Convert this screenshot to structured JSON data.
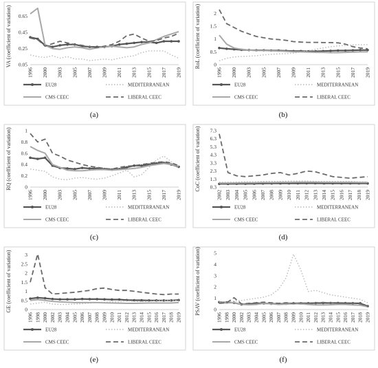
{
  "colors": {
    "eu28": "#555555",
    "mediterranean": "#b8b8b8",
    "cms": "#a8a8a8",
    "liberal": "#6a6a6a"
  },
  "legend": [
    "EU28",
    "MEDITERRANEAN",
    "CMS CEEC",
    "LIBERAL CEEC"
  ],
  "chart_data": [
    {
      "type": "line",
      "panel_label": "(a)",
      "ylabel": "VA (coefficient of variation)",
      "ylim": [
        0.05,
        0.75
      ],
      "yticks": [
        0.05,
        0.25,
        0.45,
        0.65
      ],
      "x": [
        "1996",
        "1998",
        "2000",
        "2002",
        "2003",
        "2004",
        "2005",
        "2006",
        "2007",
        "2008",
        "2009",
        "2010",
        "2011",
        "2012",
        "2013",
        "2014",
        "2015",
        "2016",
        "2017",
        "2018",
        "2019"
      ],
      "xticks": [
        "1996",
        "2000",
        "2003",
        "2005",
        "2007",
        "2009",
        "2011",
        "2013",
        "2015",
        "2017",
        "2019"
      ],
      "series": [
        {
          "name": "EU28",
          "style": "eu28",
          "values": [
            0.39,
            0.37,
            0.29,
            0.27,
            0.29,
            0.3,
            0.3,
            0.28,
            0.27,
            0.27,
            0.27,
            0.28,
            0.3,
            0.31,
            0.32,
            0.33,
            0.33,
            0.32,
            0.34,
            0.34,
            0.34
          ]
        },
        {
          "name": "MEDITERRANEAN",
          "style": "mediterranean",
          "values": [
            0.17,
            0.15,
            0.14,
            0.16,
            0.13,
            0.15,
            0.12,
            0.12,
            0.1,
            0.11,
            0.12,
            0.11,
            0.13,
            0.15,
            0.16,
            0.2,
            0.22,
            0.22,
            0.22,
            0.17,
            0.13
          ]
        },
        {
          "name": "CMS CEEC",
          "style": "cms",
          "values": [
            0.68,
            0.75,
            0.29,
            0.25,
            0.24,
            0.26,
            0.27,
            0.26,
            0.24,
            0.26,
            0.27,
            0.28,
            0.27,
            0.26,
            0.27,
            0.3,
            0.32,
            0.36,
            0.4,
            0.43,
            0.46
          ]
        },
        {
          "name": "LIBERAL CEEC",
          "style": "liberal",
          "values": [
            0.38,
            0.36,
            0.28,
            0.31,
            0.34,
            0.32,
            0.3,
            0.29,
            0.27,
            0.26,
            0.28,
            0.3,
            0.34,
            0.41,
            0.43,
            0.38,
            0.34,
            0.35,
            0.38,
            0.4,
            0.44
          ]
        }
      ]
    },
    {
      "type": "line",
      "panel_label": "(b)",
      "ylabel": "RoL (coefficient of variation)",
      "ylim": [
        0,
        2.2
      ],
      "yticks": [
        0,
        0.5,
        1,
        1.5,
        2
      ],
      "x": [
        "1996",
        "1998",
        "2000",
        "2002",
        "2003",
        "2004",
        "2005",
        "2006",
        "2007",
        "2008",
        "2009",
        "2010",
        "2011",
        "2012",
        "2013",
        "2014",
        "2015",
        "2016",
        "2017",
        "2018",
        "2019"
      ],
      "xticks": [
        "1996",
        "2000",
        "2003",
        "2005",
        "2007",
        "2009",
        "2011",
        "2013",
        "2015",
        "2017",
        "2019"
      ],
      "series": [
        {
          "name": "EU28",
          "style": "eu28",
          "values": [
            0.65,
            0.62,
            0.6,
            0.58,
            0.57,
            0.56,
            0.56,
            0.55,
            0.55,
            0.54,
            0.53,
            0.53,
            0.52,
            0.52,
            0.53,
            0.54,
            0.55,
            0.55,
            0.56,
            0.57,
            0.57
          ]
        },
        {
          "name": "MEDITERRANEAN",
          "style": "mediterranean",
          "values": [
            0.15,
            0.25,
            0.3,
            0.32,
            0.33,
            0.35,
            0.38,
            0.4,
            0.42,
            0.43,
            0.45,
            0.5,
            0.55,
            0.6,
            0.65,
            0.7,
            0.73,
            0.75,
            0.77,
            0.78,
            0.78
          ]
        },
        {
          "name": "CMS CEEC",
          "style": "cms",
          "values": [
            1.15,
            0.8,
            0.65,
            0.6,
            0.57,
            0.55,
            0.55,
            0.54,
            0.53,
            0.52,
            0.5,
            0.5,
            0.49,
            0.48,
            0.48,
            0.47,
            0.47,
            0.48,
            0.49,
            0.5,
            0.5
          ]
        },
        {
          "name": "LIBERAL CEEC",
          "style": "liberal",
          "values": [
            2.15,
            1.6,
            1.45,
            1.3,
            1.2,
            1.1,
            1.05,
            1.0,
            0.98,
            0.95,
            0.9,
            0.88,
            0.87,
            0.87,
            0.86,
            0.86,
            0.85,
            0.8,
            0.7,
            0.65,
            0.62
          ]
        }
      ]
    },
    {
      "type": "line",
      "panel_label": "(c)",
      "ylabel": "RQ (coefficient of variation)",
      "ylim": [
        0,
        1
      ],
      "yticks": [
        0,
        0.2,
        0.4,
        0.6,
        0.8,
        1
      ],
      "x": [
        "1996",
        "1998",
        "2000",
        "2002",
        "2003",
        "2004",
        "2005",
        "2006",
        "2007",
        "2008",
        "2009",
        "2010",
        "2011",
        "2012",
        "2013",
        "2014",
        "2015",
        "2016",
        "2017",
        "2018",
        "2019"
      ],
      "xticks": [
        "1996",
        "2000",
        "2003",
        "2005",
        "2007",
        "2009",
        "2011",
        "2013",
        "2015",
        "2017",
        "2019"
      ],
      "series": [
        {
          "name": "EU28",
          "style": "eu28",
          "values": [
            0.52,
            0.5,
            0.52,
            0.38,
            0.34,
            0.33,
            0.32,
            0.34,
            0.33,
            0.33,
            0.32,
            0.31,
            0.32,
            0.35,
            0.38,
            0.38,
            0.4,
            0.42,
            0.43,
            0.4,
            0.36
          ]
        },
        {
          "name": "MEDITERRANEAN",
          "style": "mediterranean",
          "values": [
            0.32,
            0.3,
            0.28,
            0.18,
            0.14,
            0.13,
            0.16,
            0.17,
            0.15,
            0.14,
            0.16,
            0.2,
            0.25,
            0.3,
            0.18,
            0.22,
            0.35,
            0.48,
            0.55,
            0.45,
            0.33
          ]
        },
        {
          "name": "CMS CEEC",
          "style": "cms",
          "values": [
            0.72,
            0.65,
            0.6,
            0.4,
            0.35,
            0.3,
            0.29,
            0.29,
            0.3,
            0.31,
            0.31,
            0.3,
            0.31,
            0.32,
            0.33,
            0.35,
            0.38,
            0.4,
            0.42,
            0.4,
            0.37
          ]
        },
        {
          "name": "LIBERAL CEEC",
          "style": "liberal",
          "values": [
            0.95,
            0.8,
            0.85,
            0.6,
            0.55,
            0.48,
            0.44,
            0.4,
            0.37,
            0.35,
            0.33,
            0.32,
            0.35,
            0.37,
            0.38,
            0.4,
            0.42,
            0.44,
            0.45,
            0.43,
            0.38
          ]
        }
      ]
    },
    {
      "type": "line",
      "panel_label": "(d)",
      "ylabel": "CoC (coefficient of variation)",
      "ylim": [
        0.3,
        7.3
      ],
      "yticks": [
        0.3,
        1.3,
        2.3,
        3.3,
        4.3,
        5.3,
        6.3,
        7.3
      ],
      "x": [
        "2002",
        "2003",
        "2004",
        "2005",
        "2006",
        "2007",
        "2008",
        "2009",
        "2010",
        "2011",
        "2012",
        "2013",
        "2014",
        "2015",
        "2016",
        "2017",
        "2018",
        "2019"
      ],
      "xticks": [
        "2002",
        "2003",
        "2004",
        "2005",
        "2006",
        "2007",
        "2008",
        "2009",
        "2010",
        "2011",
        "2012",
        "2013",
        "2014",
        "2015",
        "2016",
        "2017",
        "2018",
        "2019"
      ],
      "series": [
        {
          "name": "EU28",
          "style": "eu28",
          "values": [
            0.7,
            0.7,
            0.72,
            0.72,
            0.73,
            0.74,
            0.75,
            0.75,
            0.76,
            0.76,
            0.77,
            0.77,
            0.76,
            0.76,
            0.76,
            0.76,
            0.76,
            0.75
          ]
        },
        {
          "name": "MEDITERRANEAN",
          "style": "mediterranean",
          "values": [
            0.9,
            0.9,
            0.92,
            0.95,
            0.95,
            1.0,
            1.0,
            1.0,
            1.05,
            1.05,
            1.05,
            1.0,
            1.0,
            1.0,
            1.0,
            1.0,
            0.95,
            0.95
          ]
        },
        {
          "name": "CMS CEEC",
          "style": "cms",
          "values": [
            0.8,
            0.8,
            0.82,
            0.85,
            0.85,
            0.88,
            0.88,
            0.9,
            0.9,
            0.92,
            0.92,
            0.92,
            0.9,
            0.9,
            0.9,
            0.9,
            0.88,
            0.88
          ]
        },
        {
          "name": "LIBERAL CEEC",
          "style": "liberal",
          "values": [
            6.9,
            2.1,
            1.7,
            1.6,
            1.7,
            1.8,
            2.0,
            2.1,
            1.8,
            2.0,
            2.3,
            2.2,
            1.9,
            1.6,
            1.5,
            1.4,
            1.5,
            1.6
          ]
        }
      ]
    },
    {
      "type": "line",
      "panel_label": "(e)",
      "ylabel": "GE (coefficient of variation)",
      "ylim": [
        0,
        3.1
      ],
      "yticks": [
        0,
        0.5,
        1,
        1.5,
        2,
        2.5,
        3
      ],
      "x": [
        "1996",
        "1998",
        "2000",
        "2002",
        "2003",
        "2004",
        "2005",
        "2006",
        "2007",
        "2008",
        "2009",
        "2010",
        "2011",
        "2012",
        "2013",
        "2014",
        "2015",
        "2016",
        "2017",
        "2018",
        "2019"
      ],
      "xticks": [
        "1996",
        "1998",
        "2000",
        "2002",
        "2003",
        "2004",
        "2005",
        "2006",
        "2007",
        "2008",
        "2009",
        "2010",
        "2011",
        "2012",
        "2013",
        "2014",
        "2015",
        "2016",
        "2017",
        "2018",
        "2019"
      ],
      "series": [
        {
          "name": "EU28",
          "style": "eu28",
          "values": [
            0.6,
            0.65,
            0.62,
            0.58,
            0.56,
            0.56,
            0.56,
            0.58,
            0.57,
            0.57,
            0.56,
            0.55,
            0.55,
            0.52,
            0.51,
            0.51,
            0.5,
            0.5,
            0.5,
            0.5,
            0.52
          ]
        },
        {
          "name": "MEDITERRANEAN",
          "style": "mediterranean",
          "values": [
            0.3,
            0.35,
            0.4,
            0.3,
            0.28,
            0.28,
            0.3,
            0.32,
            0.35,
            0.38,
            0.4,
            0.42,
            0.42,
            0.48,
            0.45,
            0.44,
            0.45,
            0.48,
            0.5,
            0.5,
            0.5
          ]
        },
        {
          "name": "CMS CEEC",
          "style": "cms",
          "values": [
            0.5,
            0.55,
            0.5,
            0.45,
            0.42,
            0.4,
            0.38,
            0.38,
            0.38,
            0.38,
            0.37,
            0.36,
            0.35,
            0.34,
            0.34,
            0.35,
            0.36,
            0.36,
            0.36,
            0.36,
            0.38
          ]
        },
        {
          "name": "LIBERAL CEEC",
          "style": "liberal",
          "values": [
            1.5,
            3.05,
            1.2,
            0.85,
            0.88,
            0.92,
            0.95,
            1.0,
            1.05,
            1.15,
            1.18,
            1.1,
            1.05,
            1.05,
            1.0,
            0.95,
            0.9,
            0.85,
            0.82,
            0.85,
            0.85
          ]
        }
      ]
    },
    {
      "type": "line",
      "panel_label": "(f)",
      "ylabel": "PSAV (coefficient of variation)",
      "ylim": [
        0,
        5
      ],
      "yticks": [
        0,
        1,
        2,
        3,
        4,
        5
      ],
      "x": [
        "1996",
        "1998",
        "2000",
        "2002",
        "2003",
        "2004",
        "2005",
        "2006",
        "2007",
        "2008",
        "2009",
        "2010",
        "2011",
        "2012",
        "2013",
        "2014",
        "2015",
        "2016",
        "2017",
        "2018",
        "2019"
      ],
      "xticks": [
        "1996",
        "1998",
        "2000",
        "2002",
        "2003",
        "2004",
        "2005",
        "2006",
        "2007",
        "2008",
        "2009",
        "2010",
        "2011",
        "2012",
        "2013",
        "2014",
        "2015",
        "2016",
        "2017",
        "2018",
        "2019"
      ],
      "series": [
        {
          "name": "EU28",
          "style": "eu28",
          "values": [
            0.65,
            0.62,
            0.6,
            0.45,
            0.5,
            0.55,
            0.55,
            0.52,
            0.5,
            0.52,
            0.55,
            0.55,
            0.56,
            0.57,
            0.58,
            0.58,
            0.58,
            0.57,
            0.56,
            0.55,
            0.3
          ]
        },
        {
          "name": "MEDITERRANEAN",
          "style": "mediterranean",
          "values": [
            0.7,
            0.68,
            0.75,
            0.8,
            0.9,
            1.0,
            1.1,
            1.3,
            1.8,
            2.8,
            4.9,
            3.5,
            1.6,
            1.7,
            1.5,
            1.3,
            1.2,
            1.1,
            1.0,
            0.9,
            0.6
          ]
        },
        {
          "name": "CMS CEEC",
          "style": "cms",
          "values": [
            0.6,
            0.58,
            0.62,
            0.45,
            0.42,
            0.45,
            0.55,
            0.5,
            0.45,
            0.48,
            0.5,
            0.5,
            0.45,
            0.4,
            0.4,
            0.42,
            0.45,
            0.45,
            0.4,
            0.38,
            0.25
          ]
        },
        {
          "name": "LIBERAL CEEC",
          "style": "liberal",
          "values": [
            0.55,
            0.6,
            1.05,
            0.5,
            0.55,
            0.6,
            0.65,
            0.6,
            0.55,
            0.6,
            0.55,
            0.58,
            0.55,
            0.6,
            0.62,
            0.58,
            0.55,
            0.55,
            0.55,
            0.5,
            0.3
          ]
        }
      ]
    }
  ]
}
